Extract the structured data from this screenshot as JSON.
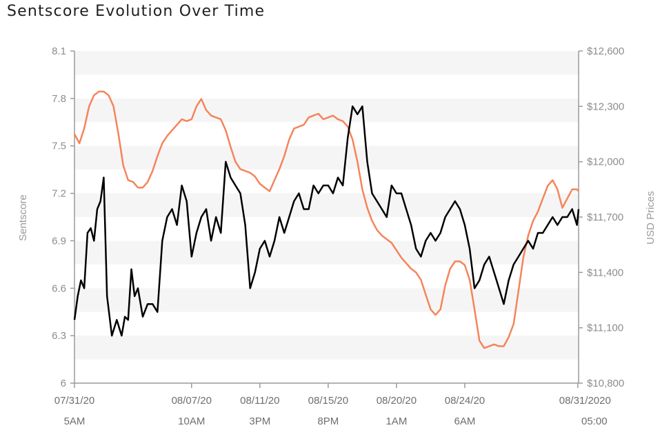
{
  "chart_data": {
    "type": "line",
    "title": "Sentscore Evolution Over Time",
    "ylabel_left": "Sentscore",
    "ylabel_right": "USD Prices",
    "ylim_left": [
      6.0,
      8.1
    ],
    "ylim_right": [
      10800,
      12600
    ],
    "left_ticks": [
      "6",
      "6.3",
      "6.6",
      "6.9",
      "7.2",
      "7.5",
      "7.8",
      "8.1"
    ],
    "right_ticks": [
      "$10,800",
      "$11,100",
      "$11,400",
      "$11,700",
      "$12,000",
      "$12,300",
      "$12,600"
    ],
    "x_ticks": [
      {
        "date": "07/31/20",
        "time": "5AM",
        "day": 0
      },
      {
        "date": "08/07/20",
        "time": "10AM",
        "day": 7.2
      },
      {
        "date": "08/11/20",
        "time": "3PM",
        "day": 11.4
      },
      {
        "date": "08/15/20",
        "time": "8PM",
        "day": 15.6
      },
      {
        "date": "08/20/20",
        "time": "1AM",
        "day": 19.8
      },
      {
        "date": "08/24/20",
        "time": "6AM",
        "day": 24.0
      },
      {
        "date": "08/31/2020",
        "time": "05:00",
        "day": 30.95
      }
    ],
    "x_range_days": [
      0,
      31
    ],
    "grid": "horizontal bands",
    "series": [
      {
        "axis": "left",
        "color": "#000000",
        "x": [
          0,
          0.2,
          0.4,
          0.6,
          0.8,
          1.0,
          1.2,
          1.4,
          1.6,
          1.8,
          2.0,
          2.3,
          2.6,
          2.9,
          3.1,
          3.3,
          3.5,
          3.7,
          3.9,
          4.2,
          4.5,
          4.8,
          5.1,
          5.4,
          5.7,
          6.0,
          6.3,
          6.6,
          6.9,
          7.2,
          7.5,
          7.8,
          8.1,
          8.4,
          8.7,
          9.0,
          9.3,
          9.6,
          9.9,
          10.2,
          10.5,
          10.8,
          11.1,
          11.4,
          11.7,
          12.0,
          12.3,
          12.6,
          12.9,
          13.2,
          13.5,
          13.8,
          14.1,
          14.4,
          14.7,
          15.0,
          15.3,
          15.6,
          15.9,
          16.2,
          16.5,
          16.8,
          17.1,
          17.4,
          17.7,
          18.0,
          18.3,
          18.6,
          18.9,
          19.2,
          19.5,
          19.8,
          20.1,
          20.4,
          20.7,
          21.0,
          21.3,
          21.6,
          21.9,
          22.2,
          22.5,
          22.8,
          23.1,
          23.4,
          23.7,
          24.0,
          24.3,
          24.6,
          24.9,
          25.2,
          25.5,
          25.8,
          26.1,
          26.4,
          26.7,
          27.0,
          27.3,
          27.6,
          27.9,
          28.2,
          28.5,
          28.8,
          29.1,
          29.4,
          29.7,
          30.0,
          30.3,
          30.6,
          30.9,
          31.0
        ],
        "values": [
          6.4,
          6.55,
          6.65,
          6.6,
          6.95,
          6.98,
          6.9,
          7.1,
          7.15,
          7.3,
          6.55,
          6.3,
          6.4,
          6.3,
          6.42,
          6.4,
          6.72,
          6.55,
          6.6,
          6.42,
          6.5,
          6.5,
          6.45,
          6.9,
          7.05,
          7.1,
          7.0,
          7.25,
          7.15,
          6.8,
          6.95,
          7.05,
          7.1,
          6.9,
          7.05,
          6.95,
          7.4,
          7.3,
          7.25,
          7.2,
          7.0,
          6.6,
          6.7,
          6.85,
          6.9,
          6.8,
          6.9,
          7.05,
          6.95,
          7.05,
          7.15,
          7.2,
          7.1,
          7.1,
          7.25,
          7.2,
          7.25,
          7.25,
          7.2,
          7.3,
          7.25,
          7.55,
          7.75,
          7.7,
          7.75,
          7.4,
          7.2,
          7.15,
          7.1,
          7.05,
          7.25,
          7.2,
          7.2,
          7.1,
          7.0,
          6.85,
          6.8,
          6.9,
          6.95,
          6.9,
          6.95,
          7.05,
          7.1,
          7.15,
          7.1,
          7.0,
          6.85,
          6.6,
          6.65,
          6.75,
          6.8,
          6.7,
          6.6,
          6.5,
          6.65,
          6.75,
          6.8,
          6.85,
          6.9,
          6.85,
          6.95,
          6.95,
          7.0,
          7.05,
          7.0,
          7.05,
          7.05,
          7.1,
          7.0,
          7.1
        ]
      },
      {
        "axis": "right",
        "color": "#f5845a",
        "x": [
          0,
          0.3,
          0.6,
          0.9,
          1.2,
          1.5,
          1.8,
          2.1,
          2.4,
          2.7,
          3.0,
          3.3,
          3.6,
          3.9,
          4.2,
          4.5,
          4.8,
          5.1,
          5.4,
          5.7,
          6.0,
          6.3,
          6.6,
          6.9,
          7.2,
          7.5,
          7.8,
          8.1,
          8.4,
          8.7,
          9.0,
          9.3,
          9.6,
          9.9,
          10.2,
          10.5,
          10.8,
          11.1,
          11.4,
          11.7,
          12.0,
          12.3,
          12.6,
          12.9,
          13.2,
          13.5,
          13.8,
          14.1,
          14.4,
          14.7,
          15.0,
          15.3,
          15.6,
          15.9,
          16.2,
          16.5,
          16.8,
          17.1,
          17.4,
          17.7,
          18.0,
          18.3,
          18.6,
          18.9,
          19.2,
          19.5,
          19.8,
          20.1,
          20.4,
          20.7,
          21.0,
          21.3,
          21.6,
          21.9,
          22.2,
          22.5,
          22.8,
          23.1,
          23.4,
          23.7,
          24.0,
          24.3,
          24.6,
          24.9,
          25.2,
          25.5,
          25.8,
          26.1,
          26.4,
          26.7,
          27.0,
          27.3,
          27.6,
          27.9,
          28.2,
          28.5,
          28.8,
          29.1,
          29.4,
          29.7,
          30.0,
          30.3,
          30.6,
          30.9,
          31.0
        ],
        "values": [
          12150,
          12100,
          12180,
          12300,
          12360,
          12380,
          12380,
          12360,
          12300,
          12150,
          11980,
          11900,
          11890,
          11860,
          11860,
          11890,
          11950,
          12030,
          12100,
          12140,
          12170,
          12200,
          12230,
          12220,
          12230,
          12300,
          12340,
          12280,
          12250,
          12240,
          12230,
          12170,
          12080,
          12000,
          11960,
          11950,
          11940,
          11920,
          11880,
          11860,
          11840,
          11900,
          11960,
          12030,
          12120,
          12180,
          12190,
          12200,
          12240,
          12250,
          12260,
          12230,
          12240,
          12250,
          12230,
          12220,
          12190,
          12120,
          12000,
          11850,
          11750,
          11680,
          11630,
          11600,
          11580,
          11560,
          11520,
          11480,
          11450,
          11420,
          11400,
          11360,
          11280,
          11200,
          11170,
          11200,
          11330,
          11420,
          11460,
          11460,
          11440,
          11360,
          11200,
          11030,
          10990,
          11000,
          11010,
          11000,
          11000,
          11050,
          11120,
          11300,
          11480,
          11600,
          11680,
          11730,
          11800,
          11870,
          11900,
          11850,
          11750,
          11800,
          11850,
          11850,
          11840
        ]
      }
    ]
  }
}
